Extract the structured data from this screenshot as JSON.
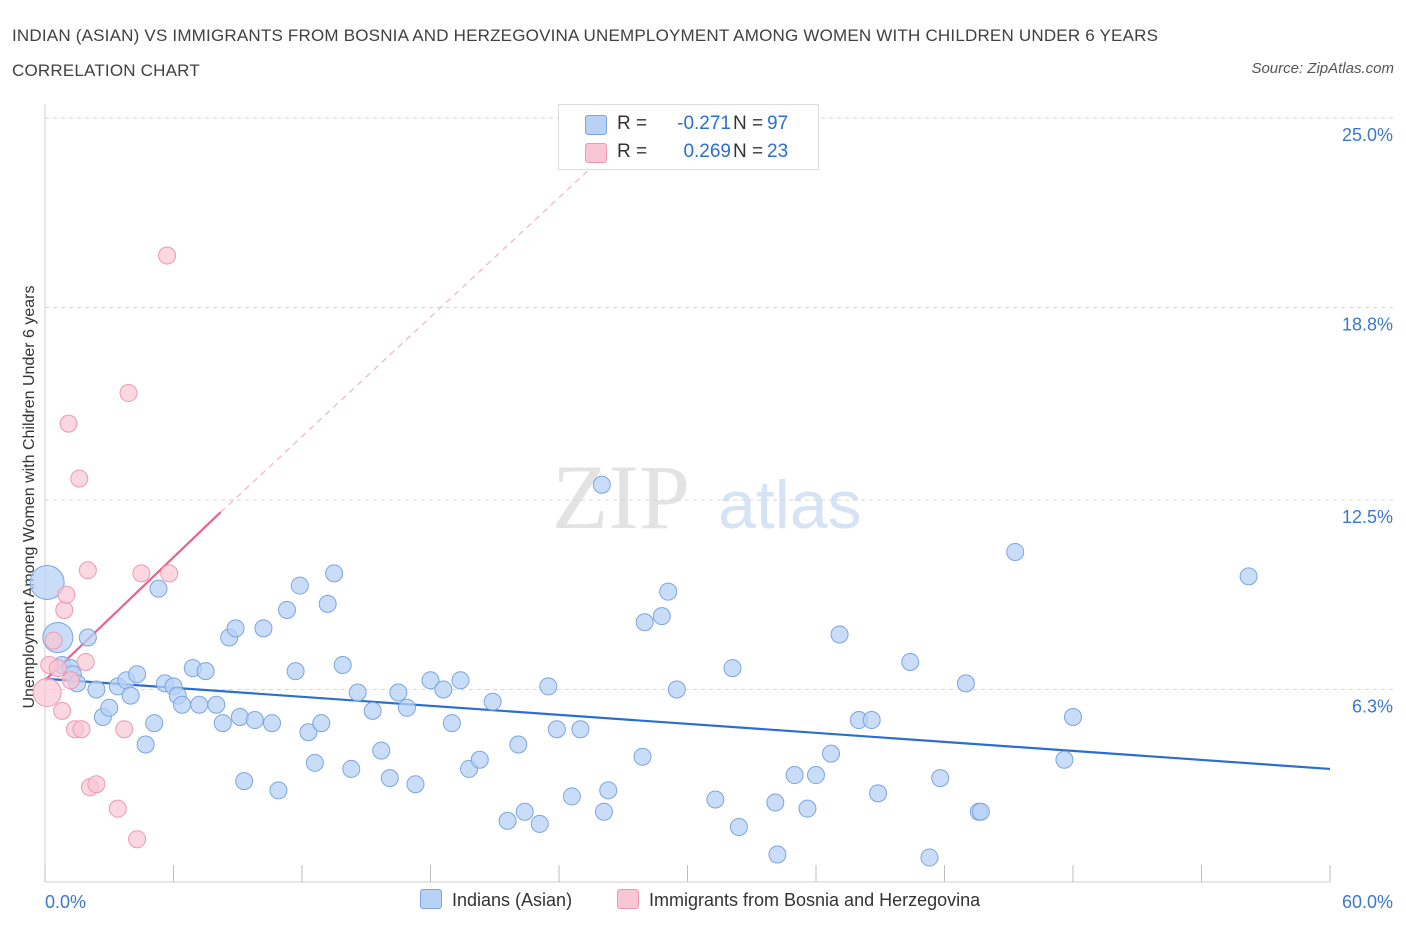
{
  "title": "INDIAN (ASIAN) VS IMMIGRANTS FROM BOSNIA AND HERZEGOVINA UNEMPLOYMENT AMONG WOMEN WITH CHILDREN UNDER 6 YEARS CORRELATION CHART",
  "source": "Source: ZipAtlas.com",
  "watermark": {
    "zip": "ZIP",
    "atlas": "atlas"
  },
  "colors": {
    "blue_fill": "#b7d2f5",
    "blue_stroke": "#7aa5e0",
    "blue_line": "#2a6fd0",
    "pink_fill": "#f8c6d4",
    "pink_stroke": "#ef98b2",
    "pink_line": "#e8638f",
    "grid": "#d6d6d6",
    "tick_label": "#3a78d0"
  },
  "legend": {
    "rows": [
      {
        "r_label": "R =",
        "r_value": "-0.271",
        "n_label": "N =",
        "n_value": "97"
      },
      {
        "r_label": "R =",
        "r_value": "0.269",
        "n_label": "N =",
        "n_value": "23"
      }
    ]
  },
  "bottom_legend": {
    "series1": "Indians (Asian)",
    "series2": "Immigrants from Bosnia and Herzegovina"
  },
  "chart_data": {
    "type": "scatter",
    "title": "INDIAN (ASIAN) VS IMMIGRANTS FROM BOSNIA AND HERZEGOVINA UNEMPLOYMENT AMONG WOMEN WITH CHILDREN UNDER 6 YEARS CORRELATION CHART",
    "xlabel": "",
    "ylabel": "Unemployment Among Women with Children Under 6 years",
    "xlim": [
      0,
      60
    ],
    "ylim": [
      0,
      25
    ],
    "x_tick_labels": [
      "0.0%",
      "60.0%"
    ],
    "y_tick_values": [
      6.3,
      12.5,
      18.8,
      25.0
    ],
    "y_tick_labels": [
      "6.3%",
      "12.5%",
      "18.8%",
      "25.0%"
    ],
    "grid": true,
    "legend_position": "top-center",
    "series": [
      {
        "name": "Indians (Asian)",
        "r": -0.271,
        "n": 97,
        "trend": {
          "x": [
            0,
            60
          ],
          "y": [
            6.65,
            3.7
          ]
        },
        "points": [
          [
            0.1,
            9.8
          ],
          [
            0.6,
            8.0
          ],
          [
            0.8,
            7.1
          ],
          [
            1.2,
            7.0
          ],
          [
            1.3,
            6.8
          ],
          [
            1.5,
            6.5
          ],
          [
            2.0,
            8.0
          ],
          [
            2.4,
            6.3
          ],
          [
            2.7,
            5.4
          ],
          [
            3.0,
            5.7
          ],
          [
            3.4,
            6.4
          ],
          [
            3.8,
            6.6
          ],
          [
            4.0,
            6.1
          ],
          [
            4.3,
            6.8
          ],
          [
            4.7,
            4.5
          ],
          [
            5.1,
            5.2
          ],
          [
            5.3,
            9.6
          ],
          [
            5.6,
            6.5
          ],
          [
            6.0,
            6.4
          ],
          [
            6.2,
            6.1
          ],
          [
            6.4,
            5.8
          ],
          [
            6.9,
            7.0
          ],
          [
            7.2,
            5.8
          ],
          [
            7.5,
            6.9
          ],
          [
            8.0,
            5.8
          ],
          [
            8.3,
            5.2
          ],
          [
            8.6,
            8.0
          ],
          [
            8.9,
            8.3
          ],
          [
            9.1,
            5.4
          ],
          [
            9.3,
            3.3
          ],
          [
            9.8,
            5.3
          ],
          [
            10.2,
            8.3
          ],
          [
            10.6,
            5.2
          ],
          [
            10.9,
            3.0
          ],
          [
            11.3,
            8.9
          ],
          [
            11.7,
            6.9
          ],
          [
            11.9,
            9.7
          ],
          [
            12.3,
            4.9
          ],
          [
            12.6,
            3.9
          ],
          [
            12.9,
            5.2
          ],
          [
            13.2,
            9.1
          ],
          [
            13.5,
            10.1
          ],
          [
            13.9,
            7.1
          ],
          [
            14.3,
            3.7
          ],
          [
            14.6,
            6.2
          ],
          [
            15.3,
            5.6
          ],
          [
            15.7,
            4.3
          ],
          [
            16.1,
            3.4
          ],
          [
            16.5,
            6.2
          ],
          [
            16.9,
            5.7
          ],
          [
            17.3,
            3.2
          ],
          [
            18.0,
            6.6
          ],
          [
            18.6,
            6.3
          ],
          [
            19.0,
            5.2
          ],
          [
            19.4,
            6.6
          ],
          [
            19.8,
            3.7
          ],
          [
            20.3,
            4.0
          ],
          [
            20.9,
            5.9
          ],
          [
            21.6,
            2.0
          ],
          [
            22.1,
            4.5
          ],
          [
            22.4,
            2.3
          ],
          [
            23.1,
            1.9
          ],
          [
            23.5,
            6.4
          ],
          [
            23.9,
            5.0
          ],
          [
            24.6,
            2.8
          ],
          [
            25.0,
            5.0
          ],
          [
            26.3,
            3.0
          ],
          [
            26.1,
            2.3
          ],
          [
            28.0,
            8.5
          ],
          [
            27.9,
            4.1
          ],
          [
            28.8,
            8.7
          ],
          [
            29.1,
            9.5
          ],
          [
            29.5,
            6.3
          ],
          [
            31.3,
            2.7
          ],
          [
            32.1,
            7.0
          ],
          [
            32.4,
            1.8
          ],
          [
            34.1,
            2.6
          ],
          [
            34.2,
            0.9
          ],
          [
            35.0,
            3.5
          ],
          [
            35.6,
            2.4
          ],
          [
            36.0,
            3.5
          ],
          [
            36.7,
            4.2
          ],
          [
            37.1,
            8.1
          ],
          [
            38.0,
            5.3
          ],
          [
            38.6,
            5.3
          ],
          [
            38.9,
            2.9
          ],
          [
            40.4,
            7.2
          ],
          [
            41.3,
            0.8
          ],
          [
            41.8,
            3.4
          ],
          [
            43.0,
            6.5
          ],
          [
            43.6,
            2.3
          ],
          [
            43.7,
            2.3
          ],
          [
            45.3,
            10.8
          ],
          [
            47.6,
            4.0
          ],
          [
            48.0,
            5.4
          ],
          [
            56.2,
            10.0
          ],
          [
            26.0,
            13.0
          ]
        ]
      },
      {
        "name": "Immigrants from Bosnia and Herzegovina",
        "r": 0.269,
        "n": 23,
        "trend": {
          "x": [
            0,
            8.2
          ],
          "y": [
            6.6,
            12.1
          ]
        },
        "trend_extension": {
          "x": [
            8.2,
            28.0
          ],
          "y": [
            12.1,
            25.0
          ]
        },
        "points": [
          [
            0.1,
            6.2
          ],
          [
            0.2,
            7.1
          ],
          [
            0.4,
            7.9
          ],
          [
            0.6,
            7.0
          ],
          [
            0.8,
            5.6
          ],
          [
            0.9,
            8.9
          ],
          [
            1.0,
            9.4
          ],
          [
            1.1,
            15.0
          ],
          [
            1.2,
            6.6
          ],
          [
            1.4,
            5.0
          ],
          [
            1.6,
            13.2
          ],
          [
            1.7,
            5.0
          ],
          [
            1.9,
            7.2
          ],
          [
            2.0,
            10.2
          ],
          [
            2.1,
            3.1
          ],
          [
            2.4,
            3.2
          ],
          [
            3.4,
            2.4
          ],
          [
            3.7,
            5.0
          ],
          [
            3.9,
            16.0
          ],
          [
            4.3,
            1.4
          ],
          [
            4.5,
            10.1
          ],
          [
            5.8,
            10.1
          ],
          [
            5.7,
            20.5
          ]
        ]
      }
    ]
  }
}
